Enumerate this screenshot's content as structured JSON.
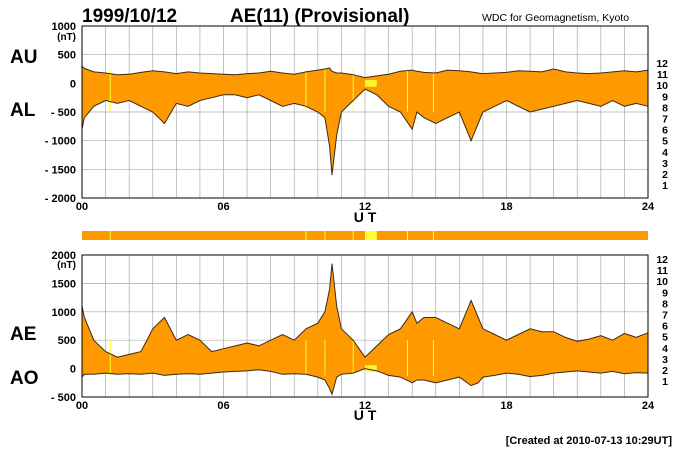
{
  "header": {
    "date": "1999/10/12",
    "title": "AE(11) (Provisional)",
    "source": "WDC for Geomagnetism, Kyoto"
  },
  "footer": {
    "created": "[Created at 2010-07-13 10:29UT]"
  },
  "levels": [
    {
      "label": "12",
      "color": "#ff1493"
    },
    {
      "label": "11",
      "color": "#cc0000"
    },
    {
      "label": "10",
      "color": "#ff9900"
    },
    {
      "label": "9",
      "color": "#e0e000"
    },
    {
      "label": "8",
      "color": "#99ff33"
    },
    {
      "label": "7",
      "color": "#33ddee"
    },
    {
      "label": "6",
      "color": "#0066ff"
    },
    {
      "label": "5",
      "color": "#3300cc"
    },
    {
      "label": "4",
      "color": "#cc00cc"
    },
    {
      "label": "3",
      "color": "#000000"
    },
    {
      "label": "2",
      "color": "#777777"
    },
    {
      "label": "1",
      "color": "#bbbbbb"
    }
  ],
  "colors": {
    "fill": "#ff9900",
    "highlight": "#ffff33",
    "line": "#3a2a1a",
    "grid": "#aaaaaa"
  },
  "chart_data": [
    {
      "type": "area",
      "name_labels": [
        "AU",
        "AL"
      ],
      "unit": "(nT)",
      "xlabel": "U T",
      "xlim": [
        0,
        24
      ],
      "x_ticks": [
        "00",
        "06",
        "12",
        "18",
        "24"
      ],
      "ylim": [
        -2000,
        1000
      ],
      "y_ticks": [
        "1000",
        "500",
        "0",
        "- 500",
        "- 1000",
        "- 1500",
        "- 2000"
      ],
      "y_tick_values": [
        1000,
        500,
        0,
        -500,
        -1000,
        -1500,
        -2000
      ],
      "grid": true,
      "x": [
        0,
        0.1,
        0.5,
        1,
        1.5,
        2,
        2.5,
        3,
        3.5,
        4,
        4.5,
        5,
        5.5,
        6,
        6.5,
        7,
        7.5,
        8,
        8.5,
        9,
        9.5,
        10,
        10.3,
        10.5,
        10.6,
        10.8,
        11,
        11.5,
        12,
        12.5,
        13,
        13.5,
        14,
        14.2,
        14.5,
        15,
        15.5,
        16,
        16.5,
        16.8,
        17,
        17.5,
        18,
        18.5,
        19,
        19.5,
        20,
        20.5,
        21,
        21.5,
        22,
        22.5,
        23,
        23.5,
        24
      ],
      "series": [
        {
          "values": [
            300,
            260,
            200,
            180,
            150,
            160,
            190,
            220,
            200,
            170,
            200,
            180,
            170,
            160,
            150,
            170,
            180,
            210,
            180,
            160,
            200,
            230,
            250,
            270,
            210,
            180,
            180,
            150,
            100,
            130,
            160,
            210,
            230,
            210,
            190,
            180,
            230,
            220,
            200,
            180,
            170,
            180,
            190,
            220,
            210,
            200,
            250,
            200,
            180,
            170,
            180,
            200,
            220,
            200,
            230
          ]
        },
        {
          "values": [
            -800,
            -600,
            -400,
            -300,
            -350,
            -300,
            -400,
            -500,
            -700,
            -350,
            -400,
            -300,
            -250,
            -200,
            -200,
            -250,
            -200,
            -300,
            -400,
            -350,
            -400,
            -500,
            -600,
            -1100,
            -1600,
            -900,
            -500,
            -300,
            -100,
            -200,
            -400,
            -500,
            -800,
            -500,
            -600,
            -700,
            -600,
            -500,
            -1000,
            -700,
            -500,
            -400,
            -300,
            -400,
            -500,
            -450,
            -400,
            -350,
            -300,
            -350,
            -400,
            -300,
            -400,
            -350,
            -400
          ]
        }
      ]
    },
    {
      "type": "area",
      "name_labels": [
        "AE",
        "AO"
      ],
      "unit": "(nT)",
      "xlabel": "U T",
      "xlim": [
        0,
        24
      ],
      "x_ticks": [
        "00",
        "06",
        "12",
        "18",
        "24"
      ],
      "ylim": [
        -500,
        2000
      ],
      "y_ticks": [
        "2000",
        "1500",
        "1000",
        "500",
        "0",
        "- 500"
      ],
      "y_tick_values": [
        2000,
        1500,
        1000,
        500,
        0,
        -500
      ],
      "grid": true,
      "x": [
        0,
        0.1,
        0.5,
        1,
        1.5,
        2,
        2.5,
        3,
        3.5,
        4,
        4.5,
        5,
        5.5,
        6,
        6.5,
        7,
        7.5,
        8,
        8.5,
        9,
        9.5,
        10,
        10.3,
        10.5,
        10.6,
        10.8,
        11,
        11.5,
        12,
        12.5,
        13,
        13.5,
        14,
        14.2,
        14.5,
        15,
        15.5,
        16,
        16.5,
        16.8,
        17,
        17.5,
        18,
        18.5,
        19,
        19.5,
        20,
        20.5,
        21,
        21.5,
        22,
        22.5,
        23,
        23.5,
        24
      ],
      "series": [
        {
          "values": [
            1100,
            900,
            500,
            300,
            200,
            250,
            300,
            700,
            900,
            500,
            600,
            500,
            300,
            350,
            400,
            450,
            400,
            500,
            600,
            500,
            700,
            800,
            1000,
            1400,
            1850,
            1100,
            700,
            500,
            200,
            400,
            600,
            700,
            1000,
            800,
            900,
            900,
            800,
            700,
            1200,
            900,
            700,
            600,
            500,
            600,
            700,
            650,
            650,
            550,
            480,
            520,
            580,
            500,
            620,
            550,
            630
          ]
        },
        {
          "values": [
            -150,
            -100,
            -100,
            -80,
            -100,
            -90,
            -100,
            -80,
            -120,
            -100,
            -90,
            -100,
            -80,
            -60,
            -50,
            -40,
            -20,
            -50,
            -100,
            -90,
            -100,
            -150,
            -200,
            -350,
            -450,
            -150,
            -100,
            -80,
            0,
            -40,
            -120,
            -150,
            -250,
            -200,
            -200,
            -250,
            -200,
            -150,
            -300,
            -250,
            -150,
            -120,
            -80,
            -100,
            -140,
            -120,
            -80,
            -60,
            -40,
            -60,
            -80,
            -50,
            -90,
            -70,
            -80
          ]
        }
      ]
    }
  ],
  "data_gaps": {
    "highlight_start": 12.0,
    "highlight_end": 12.5,
    "marker_hours": [
      1.2,
      9.5,
      10.3,
      11.5,
      13.8,
      14.9
    ]
  }
}
